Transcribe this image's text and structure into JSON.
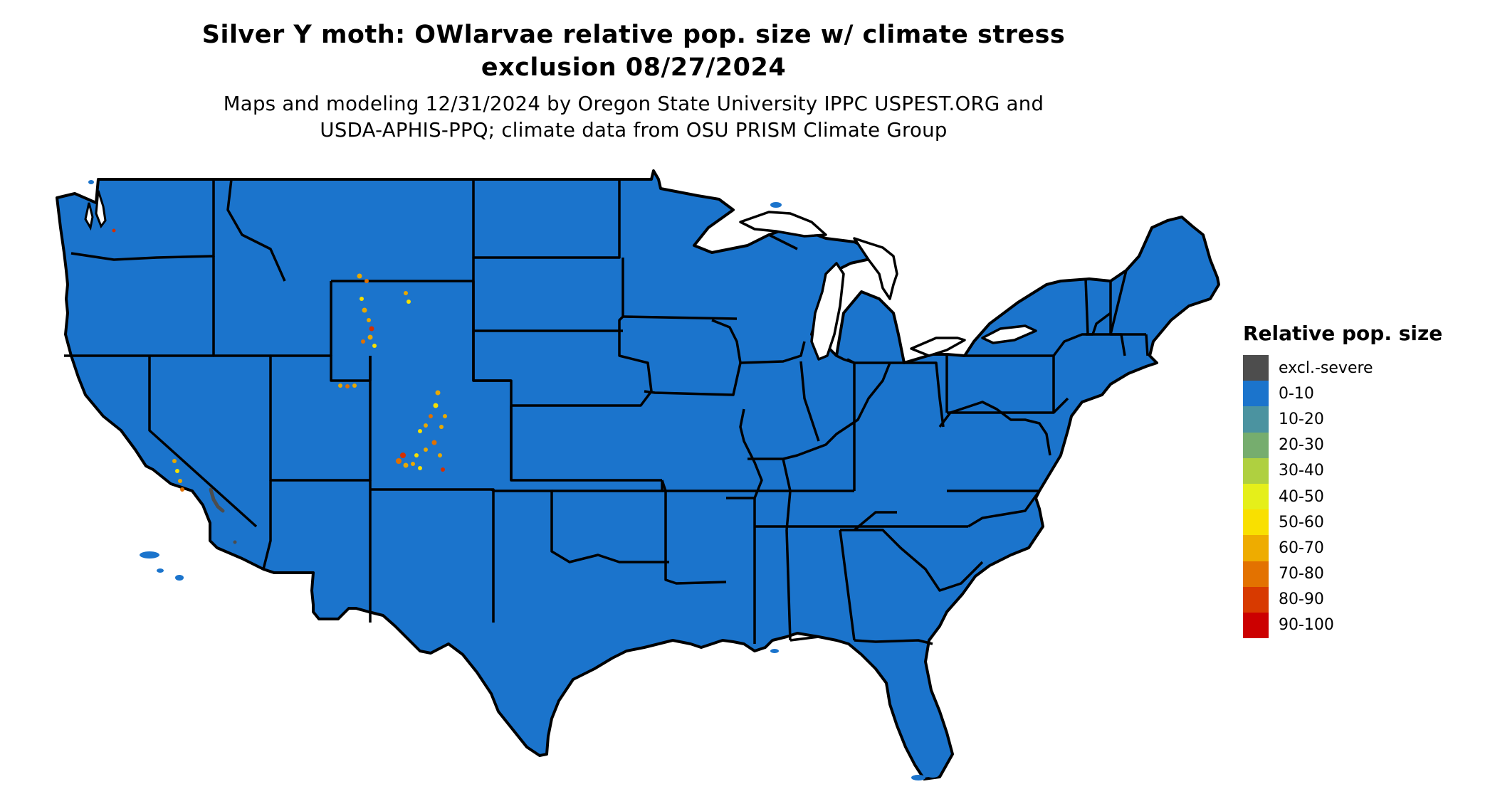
{
  "title_line1": "Silver Y moth: OWlarvae relative pop. size w/ climate stress",
  "title_line2": "exclusion 08/27/2024",
  "subtitle_line1": "Maps and modeling 12/31/2024 by Oregon State University IPPC USPEST.ORG and",
  "subtitle_line2": "USDA-APHIS-PPQ; climate data from OSU PRISM Climate Group",
  "map": {
    "region": "Contiguous United States",
    "base_fill": "#1b74cc",
    "border_color": "#000000",
    "hotspot_colors": [
      "#d32f00",
      "#e07000",
      "#e8a800",
      "#f6e000"
    ]
  },
  "legend": {
    "title": "Relative pop. size",
    "items": [
      {
        "label": "excl.-severe",
        "color": "#4d4d4d"
      },
      {
        "label": "0-10",
        "color": "#1b74cc"
      },
      {
        "label": "10-20",
        "color": "#4b93a0"
      },
      {
        "label": "20-30",
        "color": "#76ad6e"
      },
      {
        "label": "30-40",
        "color": "#afd040"
      },
      {
        "label": "40-50",
        "color": "#e5ef1a"
      },
      {
        "label": "50-60",
        "color": "#f9e000"
      },
      {
        "label": "60-70",
        "color": "#eeac00"
      },
      {
        "label": "70-80",
        "color": "#e37200"
      },
      {
        "label": "80-90",
        "color": "#d83a00"
      },
      {
        "label": "90-100",
        "color": "#cc0000"
      }
    ]
  }
}
